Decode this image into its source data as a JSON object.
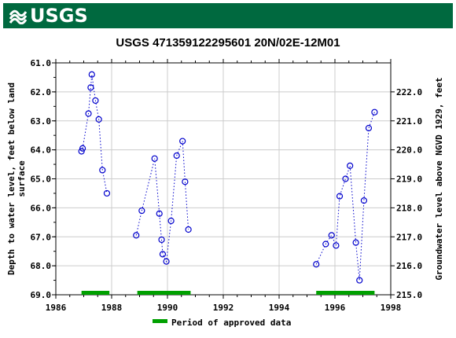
{
  "header": {
    "brand": "USGS"
  },
  "chart_data": {
    "type": "scatter",
    "title": "USGS 471359122295601 20N/02E-12M01",
    "ylabel_left": "Depth to water level, feet below land surface",
    "ylabel_left_lines": [
      "Depth to water level, feet below land",
      "surface"
    ],
    "ylabel_right": "Groundwater level above NGVD 1929, feet",
    "xlim": [
      1986,
      1998
    ],
    "ylim_left": [
      69.0,
      61.0
    ],
    "ylim_right": [
      215.0,
      223.0
    ],
    "x_ticks": [
      "1986",
      "1988",
      "1990",
      "1992",
      "1994",
      "1996",
      "1998"
    ],
    "y_left_ticks": [
      "61.0",
      "62.0",
      "63.0",
      "64.0",
      "65.0",
      "66.0",
      "67.0",
      "68.0",
      "69.0"
    ],
    "y_right_ticks": [
      "215.0",
      "216.0",
      "217.0",
      "218.0",
      "219.0",
      "220.0",
      "221.0",
      "222.0"
    ],
    "grid": true,
    "series": [
      {
        "values": [
          [
            1986.92,
            64.05
          ],
          [
            1986.96,
            63.95
          ],
          [
            1987.17,
            62.75
          ],
          [
            1987.25,
            61.85
          ],
          [
            1987.29,
            61.4
          ],
          [
            1987.42,
            62.3
          ],
          [
            1987.54,
            62.95
          ],
          [
            1987.67,
            64.7
          ],
          [
            1987.83,
            65.5
          ]
        ]
      },
      {
        "values": [
          [
            1988.88,
            66.95
          ],
          [
            1989.08,
            66.1
          ],
          [
            1989.54,
            64.3
          ],
          [
            1989.71,
            66.2
          ],
          [
            1989.79,
            67.1
          ],
          [
            1989.83,
            67.6
          ],
          [
            1989.96,
            67.85
          ],
          [
            1990.13,
            66.45
          ],
          [
            1990.33,
            64.2
          ],
          [
            1990.54,
            63.7
          ],
          [
            1990.63,
            65.1
          ],
          [
            1990.75,
            66.75
          ]
        ]
      },
      {
        "values": [
          [
            1995.33,
            67.95
          ],
          [
            1995.67,
            67.25
          ],
          [
            1995.88,
            66.95
          ],
          [
            1996.04,
            67.3
          ],
          [
            1996.17,
            65.6
          ],
          [
            1996.38,
            65.0
          ],
          [
            1996.54,
            64.55
          ],
          [
            1996.75,
            67.2
          ],
          [
            1996.88,
            68.5
          ],
          [
            1997.04,
            65.75
          ],
          [
            1997.21,
            63.25
          ],
          [
            1997.42,
            62.7
          ]
        ]
      }
    ],
    "approved_periods": [
      [
        1986.92,
        1987.92
      ],
      [
        1988.92,
        1990.83
      ],
      [
        1995.33,
        1997.42
      ]
    ],
    "legend": {
      "label": "Period of approved data",
      "position": "bottom-center"
    },
    "colors": {
      "points": "#0000cc",
      "line": "#0000cc",
      "approved": "#00a000",
      "grid": "#cccccc",
      "banner": "#00693f"
    }
  }
}
